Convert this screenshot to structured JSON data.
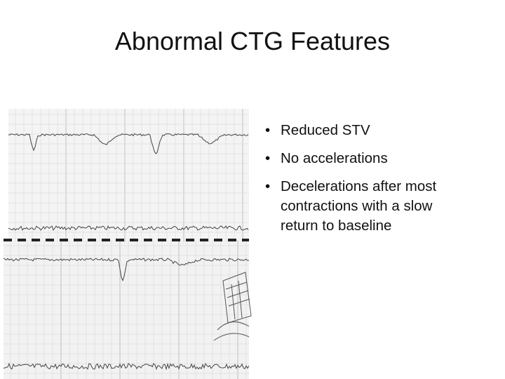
{
  "slide": {
    "title": "Abnormal CTG Features",
    "bullets": [
      "Reduced STV",
      "No accelerations",
      "Decelerations after most contractions with a slow return to baseline"
    ]
  }
}
